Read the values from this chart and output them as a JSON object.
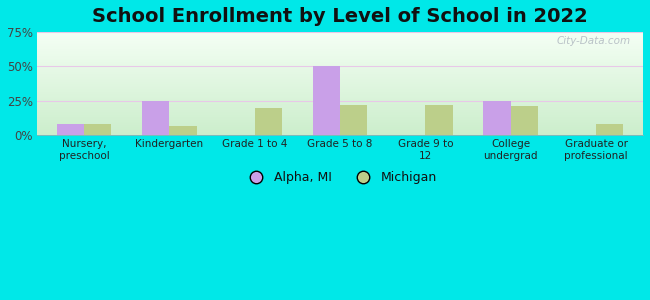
{
  "title": "School Enrollment by Level of School in 2022",
  "categories": [
    "Nursery,\npreschool",
    "Kindergarten",
    "Grade 1 to 4",
    "Grade 5 to 8",
    "Grade 9 to\n12",
    "College\nundergrad",
    "Graduate or\nprofessional"
  ],
  "alpha_mi": [
    8,
    25,
    0,
    50,
    0,
    25,
    0
  ],
  "michigan": [
    8,
    7,
    20,
    22,
    22,
    21,
    8
  ],
  "alpha_color": "#c9a0e8",
  "michigan_color": "#bccf8a",
  "ylim": [
    0,
    75
  ],
  "yticks": [
    0,
    25,
    50,
    75
  ],
  "ytick_labels": [
    "0%",
    "25%",
    "50%",
    "75%"
  ],
  "bg_outer": "#00e8e8",
  "grad_top": "#f5fff5",
  "grad_bot": "#cceecc",
  "title_fontsize": 14,
  "legend_labels": [
    "Alpha, MI",
    "Michigan"
  ],
  "watermark": "City-Data.com",
  "grid_color": "#e8c8e8",
  "bar_width": 0.32
}
